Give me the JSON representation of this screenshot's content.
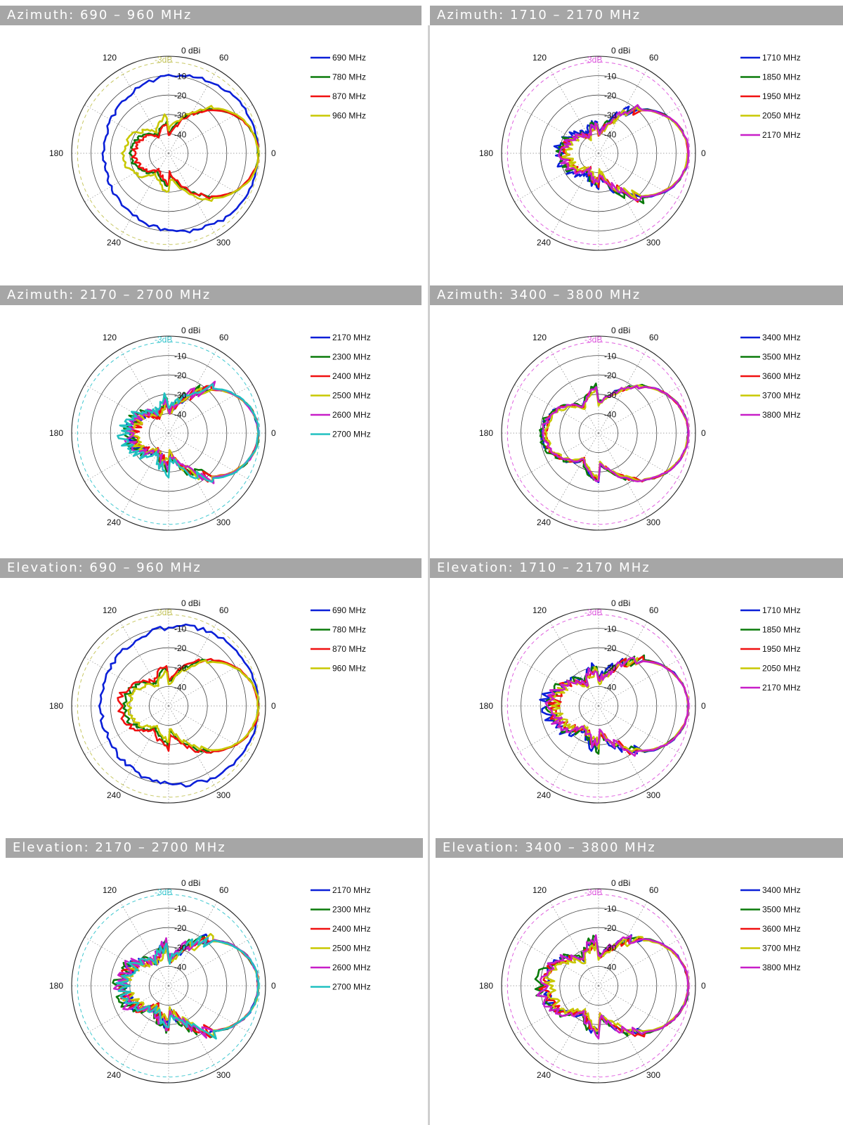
{
  "colors": {
    "header_bg": "#a6a6a6",
    "header_text": "#ffffff",
    "blue": "#0a1fd8",
    "green": "#0a7a0a",
    "red": "#f01010",
    "yellow": "#c8c800",
    "magenta": "#c81ec8",
    "cyan": "#20c0c0"
  },
  "axis": {
    "rings": [
      "-10",
      "-20",
      "-30",
      "-40"
    ],
    "top_label": "0 dBi",
    "ref_label": "-3dB",
    "angles": [
      "60",
      "120",
      "180",
      "240",
      "300",
      "0"
    ]
  },
  "chart_data": [
    {
      "type": "polar-line",
      "title": "Azimuth: 690 – 960 MHz",
      "header_width": "full",
      "r_range_dbi": [
        -50,
        0
      ],
      "ref_circle_dbi": -3,
      "ref_color": "#c8c864",
      "series": [
        {
          "name": "690 MHz",
          "color": "#0a1fd8",
          "pattern": "omni",
          "fb": 0.72,
          "rough": 0.05
        },
        {
          "name": "780 MHz",
          "color": "#0a7a0a",
          "pattern": "dir",
          "fb": 0.42,
          "rough": 0.12
        },
        {
          "name": "870 MHz",
          "color": "#f01010",
          "pattern": "dir",
          "fb": 0.38,
          "rough": 0.18
        },
        {
          "name": "960 MHz",
          "color": "#c8c800",
          "pattern": "dir",
          "fb": 0.5,
          "rough": 0.15
        }
      ]
    },
    {
      "type": "polar-line",
      "title": "Azimuth: 1710 – 2170 MHz",
      "header_width": "full",
      "r_range_dbi": [
        -50,
        0
      ],
      "ref_circle_dbi": -3,
      "ref_color": "#e060e0",
      "series": [
        {
          "name": "1710 MHz",
          "color": "#0a1fd8",
          "pattern": "dir",
          "fb": 0.45,
          "rough": 0.3
        },
        {
          "name": "1850 MHz",
          "color": "#0a7a0a",
          "pattern": "dir",
          "fb": 0.42,
          "rough": 0.3
        },
        {
          "name": "1950 MHz",
          "color": "#f01010",
          "pattern": "dir",
          "fb": 0.38,
          "rough": 0.32
        },
        {
          "name": "2050 MHz",
          "color": "#c8c800",
          "pattern": "dir",
          "fb": 0.35,
          "rough": 0.32
        },
        {
          "name": "2170 MHz",
          "color": "#c81ec8",
          "pattern": "dir",
          "fb": 0.4,
          "rough": 0.3
        }
      ]
    },
    {
      "type": "polar-line",
      "title": "Azimuth: 2170 – 2700 MHz",
      "header_width": "full",
      "r_range_dbi": [
        -50,
        0
      ],
      "ref_circle_dbi": -3,
      "ref_color": "#40c8d0",
      "series": [
        {
          "name": "2170 MHz",
          "color": "#0a1fd8",
          "pattern": "dir",
          "fb": 0.42,
          "rough": 0.35
        },
        {
          "name": "2300 MHz",
          "color": "#0a7a0a",
          "pattern": "dir",
          "fb": 0.45,
          "rough": 0.35
        },
        {
          "name": "2400 MHz",
          "color": "#f01010",
          "pattern": "dir",
          "fb": 0.38,
          "rough": 0.38
        },
        {
          "name": "2500 MHz",
          "color": "#c8c800",
          "pattern": "dir",
          "fb": 0.4,
          "rough": 0.35
        },
        {
          "name": "2600 MHz",
          "color": "#c81ec8",
          "pattern": "dir",
          "fb": 0.44,
          "rough": 0.35
        },
        {
          "name": "2700 MHz",
          "color": "#20c0c0",
          "pattern": "dir",
          "fb": 0.5,
          "rough": 0.3
        }
      ]
    },
    {
      "type": "polar-line",
      "title": "Azimuth: 3400 – 3800 MHz",
      "header_width": "full",
      "r_range_dbi": [
        -50,
        0
      ],
      "ref_circle_dbi": -3,
      "ref_color": "#e060e0",
      "series": [
        {
          "name": "3400 MHz",
          "color": "#0a1fd8",
          "pattern": "dir",
          "fb": 0.62,
          "rough": 0.1
        },
        {
          "name": "3500 MHz",
          "color": "#0a7a0a",
          "pattern": "dir",
          "fb": 0.63,
          "rough": 0.12
        },
        {
          "name": "3600 MHz",
          "color": "#f01010",
          "pattern": "dir",
          "fb": 0.6,
          "rough": 0.1
        },
        {
          "name": "3700 MHz",
          "color": "#c8c800",
          "pattern": "dir",
          "fb": 0.58,
          "rough": 0.1
        },
        {
          "name": "3800 MHz",
          "color": "#c81ec8",
          "pattern": "dir",
          "fb": 0.61,
          "rough": 0.1
        }
      ]
    },
    {
      "type": "polar-line",
      "title": "Elevation: 690 – 960 MHz",
      "header_width": "full",
      "r_range_dbi": [
        -50,
        0
      ],
      "ref_circle_dbi": -3,
      "ref_color": "#c8c864",
      "series": [
        {
          "name": "690 MHz",
          "color": "#0a1fd8",
          "pattern": "omni",
          "fb": 0.75,
          "rough": 0.06
        },
        {
          "name": "780 MHz",
          "color": "#0a7a0a",
          "pattern": "dir",
          "fb": 0.5,
          "rough": 0.15
        },
        {
          "name": "870 MHz",
          "color": "#f01010",
          "pattern": "dir",
          "fb": 0.55,
          "rough": 0.15
        },
        {
          "name": "960 MHz",
          "color": "#c8c800",
          "pattern": "dir",
          "fb": 0.45,
          "rough": 0.15
        }
      ]
    },
    {
      "type": "polar-line",
      "title": "Elevation: 1710 – 2170 MHz",
      "header_width": "full",
      "r_range_dbi": [
        -50,
        0
      ],
      "ref_circle_dbi": -3,
      "ref_color": "#e060e0",
      "series": [
        {
          "name": "1710 MHz",
          "color": "#0a1fd8",
          "pattern": "dir",
          "fb": 0.58,
          "rough": 0.28
        },
        {
          "name": "1850 MHz",
          "color": "#0a7a0a",
          "pattern": "dir",
          "fb": 0.55,
          "rough": 0.28
        },
        {
          "name": "1950 MHz",
          "color": "#f01010",
          "pattern": "dir",
          "fb": 0.5,
          "rough": 0.3
        },
        {
          "name": "2050 MHz",
          "color": "#c8c800",
          "pattern": "dir",
          "fb": 0.48,
          "rough": 0.3
        },
        {
          "name": "2170 MHz",
          "color": "#c81ec8",
          "pattern": "dir",
          "fb": 0.52,
          "rough": 0.3
        }
      ]
    },
    {
      "type": "polar-line",
      "title": "Elevation: 2170 – 2700 MHz",
      "header_width": "short",
      "r_range_dbi": [
        -50,
        0
      ],
      "ref_circle_dbi": -3,
      "ref_color": "#40c8d0",
      "series": [
        {
          "name": "2170 MHz",
          "color": "#0a1fd8",
          "pattern": "dir",
          "fb": 0.52,
          "rough": 0.35
        },
        {
          "name": "2300 MHz",
          "color": "#0a7a0a",
          "pattern": "dir",
          "fb": 0.55,
          "rough": 0.35
        },
        {
          "name": "2400 MHz",
          "color": "#f01010",
          "pattern": "dir",
          "fb": 0.5,
          "rough": 0.38
        },
        {
          "name": "2500 MHz",
          "color": "#c8c800",
          "pattern": "dir",
          "fb": 0.48,
          "rough": 0.36
        },
        {
          "name": "2600 MHz",
          "color": "#c81ec8",
          "pattern": "dir",
          "fb": 0.55,
          "rough": 0.35
        },
        {
          "name": "2700 MHz",
          "color": "#20c0c0",
          "pattern": "dir",
          "fb": 0.52,
          "rough": 0.35
        }
      ]
    },
    {
      "type": "polar-line",
      "title": "Elevation: 3400 – 3800 MHz",
      "header_width": "full",
      "r_range_dbi": [
        -50,
        0
      ],
      "ref_circle_dbi": -3,
      "ref_color": "#e060e0",
      "series": [
        {
          "name": "3400 MHz",
          "color": "#0a1fd8",
          "pattern": "dir",
          "fb": 0.62,
          "rough": 0.22
        },
        {
          "name": "3500 MHz",
          "color": "#0a7a0a",
          "pattern": "dir",
          "fb": 0.65,
          "rough": 0.22
        },
        {
          "name": "3600 MHz",
          "color": "#f01010",
          "pattern": "dir",
          "fb": 0.6,
          "rough": 0.22
        },
        {
          "name": "3700 MHz",
          "color": "#c8c800",
          "pattern": "dir",
          "fb": 0.55,
          "rough": 0.25
        },
        {
          "name": "3800 MHz",
          "color": "#c81ec8",
          "pattern": "dir",
          "fb": 0.63,
          "rough": 0.22
        }
      ]
    }
  ]
}
